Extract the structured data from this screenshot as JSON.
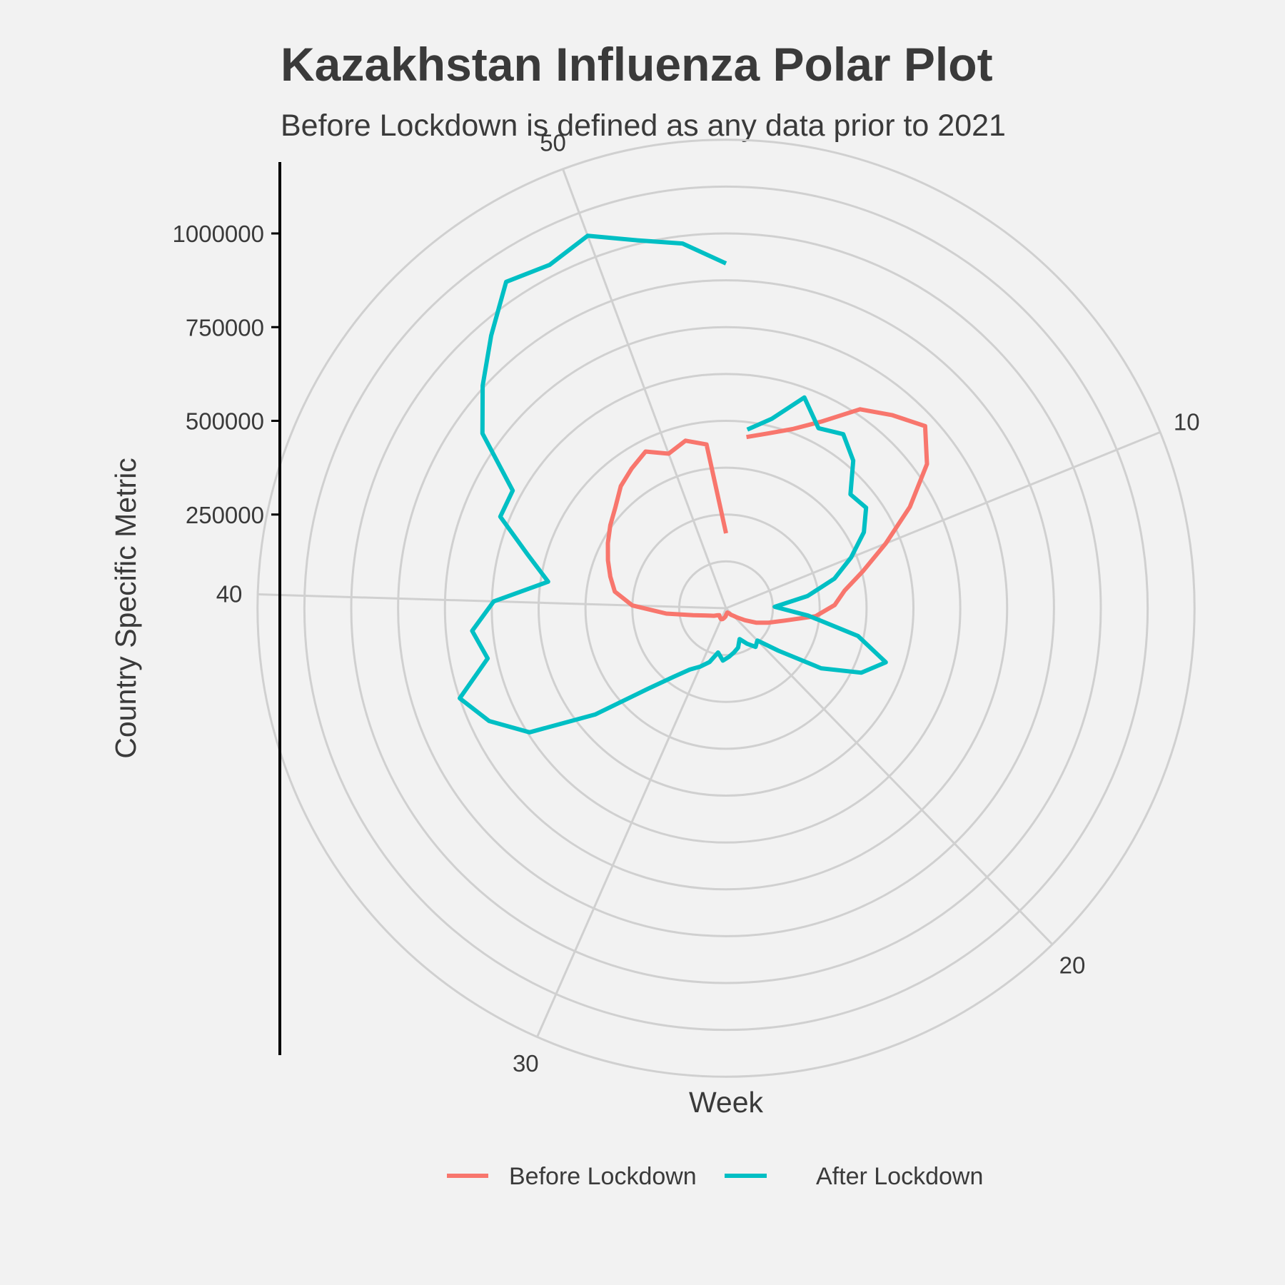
{
  "chart_data": {
    "type": "line",
    "coordinate_system": "polar",
    "title": "Kazakhstan Influenza Polar Plot",
    "subtitle": "Before Lockdown is defined as any data prior to 2021",
    "xlabel": "Week",
    "ylabel": "Country Specific Metric",
    "x_ticks": [
      10,
      20,
      30,
      40,
      50
    ],
    "y_ticks": [
      250000,
      500000,
      750000,
      1000000
    ],
    "y_tick_labels": [
      "250000",
      "500000",
      "750000",
      "1000000"
    ],
    "xlim": [
      0,
      53
    ],
    "ylim": [
      0,
      1250000
    ],
    "grid": true,
    "legend_position": "bottom",
    "colors": {
      "background": "#f2f2f2",
      "grid": "#d0d0d0",
      "axis": "#000000",
      "text": "#3a3a3a"
    },
    "series": [
      {
        "name": "Before Lockdown",
        "color": "#f8766d",
        "x": [
          1,
          2,
          3,
          4,
          5,
          6,
          7,
          8,
          9,
          10,
          11,
          12,
          13,
          14,
          15,
          16,
          17,
          18,
          19,
          20,
          21,
          22,
          23,
          24,
          25,
          26,
          27,
          28,
          29,
          30,
          31,
          32,
          33,
          34,
          35,
          36,
          37,
          38,
          39,
          40,
          41,
          42,
          43,
          44,
          45,
          46,
          47,
          48,
          49,
          50,
          51,
          52,
          53
        ],
        "y": [
          460000,
          480000,
          510000,
          560000,
          640000,
          680000,
          720000,
          660000,
          560000,
          460000,
          380000,
          320000,
          290000,
          240000,
          160000,
          120000,
          90000,
          60000,
          40000,
          28000,
          22000,
          16000,
          14000,
          12000,
          14000,
          16000,
          22000,
          26000,
          30000,
          32000,
          30000,
          28000,
          26000,
          30000,
          38000,
          46000,
          60000,
          90000,
          160000,
          250000,
          300000,
          320000,
          340000,
          360000,
          380000,
          400000,
          430000,
          450000,
          470000,
          440000,
          460000,
          440000,
          200000
        ]
      },
      {
        "name": "After Lockdown",
        "color": "#00bfc4",
        "x": [
          1,
          2,
          3,
          4,
          5,
          6,
          7,
          8,
          9,
          10,
          11,
          12,
          13,
          14,
          15,
          16,
          17,
          18,
          19,
          20,
          21,
          22,
          23,
          24,
          25,
          26,
          27,
          28,
          29,
          30,
          31,
          32,
          33,
          34,
          35,
          36,
          37,
          38,
          39,
          40,
          41,
          42,
          43,
          44,
          45,
          46,
          47,
          48,
          49,
          50,
          51,
          52,
          53
        ],
        "y": [
          480000,
          520000,
          600000,
          540000,
          560000,
          520000,
          450000,
          460000,
          420000,
          360000,
          300000,
          220000,
          130000,
          220000,
          360000,
          450000,
          400000,
          300000,
          180000,
          120000,
          130000,
          110000,
          90000,
          110000,
          120000,
          130000,
          140000,
          120000,
          150000,
          170000,
          190000,
          230000,
          300000,
          450000,
          620000,
          700000,
          750000,
          650000,
          680000,
          620000,
          480000,
          550000,
          650000,
          650000,
          800000,
          880000,
          960000,
          1050000,
          1030000,
          1060000,
          1010000,
          980000,
          920000
        ]
      }
    ]
  }
}
